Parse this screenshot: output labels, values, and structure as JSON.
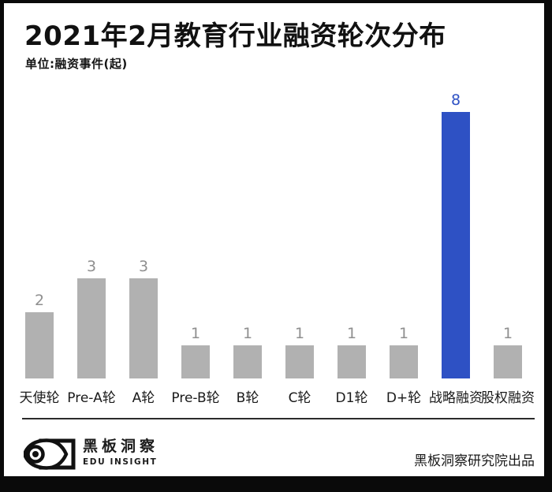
{
  "header": {
    "title": "2021年2月教育行业融资轮次分布",
    "subtitle": "单位:融资事件(起)"
  },
  "chart_data": {
    "type": "bar",
    "title": "2021年2月教育行业融资轮次分布",
    "unit_label": "单位:融资事件(起)",
    "categories": [
      "天使轮",
      "Pre-A轮",
      "A轮",
      "Pre-B轮",
      "B轮",
      "C轮",
      "D1轮",
      "D+轮",
      "战略融资",
      "股权融资"
    ],
    "values": [
      2,
      3,
      3,
      1,
      1,
      1,
      1,
      1,
      8,
      1
    ],
    "highlight_index": 8,
    "ylim": [
      0,
      8
    ],
    "grid": false,
    "legend": false,
    "xlabel": "",
    "ylabel": "融资事件(起)",
    "colors": {
      "bar": "#b1b1b1",
      "highlight_bar": "#2e51c4",
      "value_label": "#8f8f8f",
      "highlight_value_label": "#2e51c4",
      "category_label": "#1a1a1a"
    }
  },
  "footer": {
    "logo_cn": "黑板洞察",
    "logo_en": "EDU INSIGHT",
    "credit": "黑板洞察研究院出品"
  }
}
